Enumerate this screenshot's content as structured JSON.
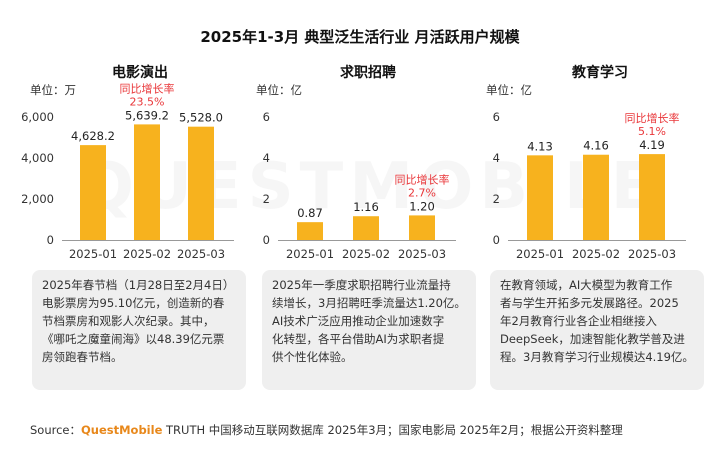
{
  "title": "2025年1-3月 典型泛生活行业 月活跃用户规模",
  "watermark": "QUESTMOBILE",
  "colors": {
    "bar": "#f7b21e",
    "growth": "#e9373a",
    "axis": "#333333",
    "grid": "#999999"
  },
  "chart_data": [
    {
      "type": "bar",
      "title": "电影演出",
      "unit_label": "单位：万",
      "categories": [
        "2025-01",
        "2025-02",
        "2025-03"
      ],
      "values": [
        4628.2,
        5639.2,
        5528.0
      ],
      "value_labels": [
        "4,628.2",
        "5,639.2",
        "5,528.0"
      ],
      "yticks": [
        0,
        2000,
        4000,
        6000
      ],
      "ytick_labels": [
        "0",
        "2,000",
        "4,000",
        "6,000"
      ],
      "ylim": [
        0,
        6000
      ],
      "growth": {
        "label": "同比增长率",
        "value": "23.5%",
        "category_index": 1
      }
    },
    {
      "type": "bar",
      "title": "求职招聘",
      "unit_label": "单位：亿",
      "categories": [
        "2025-01",
        "2025-02",
        "2025-03"
      ],
      "values": [
        0.87,
        1.16,
        1.2
      ],
      "value_labels": [
        "0.87",
        "1.16",
        "1.20"
      ],
      "yticks": [
        0,
        2,
        4,
        6
      ],
      "ytick_labels": [
        "0",
        "2",
        "4",
        "6"
      ],
      "ylim": [
        0,
        6
      ],
      "growth": {
        "label": "同比增长率",
        "value": "2.7%",
        "category_index": 2
      }
    },
    {
      "type": "bar",
      "title": "教育学习",
      "unit_label": "单位：亿",
      "categories": [
        "2025-01",
        "2025-02",
        "2025-03"
      ],
      "values": [
        4.13,
        4.16,
        4.19
      ],
      "value_labels": [
        "4.13",
        "4.16",
        "4.19"
      ],
      "yticks": [
        0,
        2,
        4,
        6
      ],
      "ytick_labels": [
        "0",
        "2",
        "4",
        "6"
      ],
      "ylim": [
        0,
        6
      ],
      "growth": {
        "label": "同比增长率",
        "value": "5.1%",
        "category_index": 2
      }
    }
  ],
  "notes": [
    {
      "lines": [
        "2025年春节档（1月28日至2月4日）",
        "电影票房为95.10亿元，创造新的春",
        "节档票房和观影人次纪录。其中，",
        "《哪吒之魔童闹海》以48.39亿元票",
        "房领跑春节档。"
      ]
    },
    {
      "lines": [
        "2025年一季度求职招聘行业流量持",
        "续增长，3月招聘旺季流量达1.20亿。",
        "AI技术广泛应用推动企业加速数字",
        "化转型，各平台借助AI为求职者提",
        "供个性化体验。"
      ]
    },
    {
      "lines": [
        "在教育领域，AI大模型为教育工作",
        "者与学生开拓多元发展路径。2025",
        "年2月教育行业各企业相继接入",
        "DeepSeek，加速智能化教学普及进",
        "程。3月教育学习行业规模达4.19亿。"
      ]
    }
  ],
  "source": {
    "prefix": "Source：",
    "brand": "QuestMobile",
    "text": " TRUTH 中国移动互联网数据库 2025年3月；国家电影局 2025年2月；根据公开资料整理"
  }
}
